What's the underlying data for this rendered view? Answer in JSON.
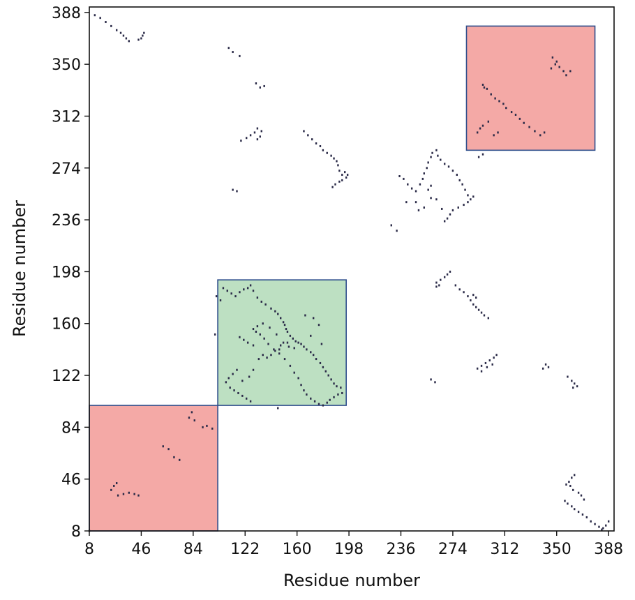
{
  "chart_data": {
    "type": "scatter",
    "title": "",
    "xlabel": "Residue number",
    "ylabel": "Residue number",
    "xlim": [
      8,
      392
    ],
    "ylim": [
      8,
      392
    ],
    "xticks": [
      "8",
      "46",
      "84",
      "122",
      "160",
      "198",
      "236",
      "274",
      "312",
      "350",
      "388"
    ],
    "yticks": [
      "8",
      "46",
      "84",
      "122",
      "160",
      "198",
      "236",
      "274",
      "312",
      "350",
      "388"
    ],
    "domains": [
      {
        "x": [
          8,
          102
        ],
        "y": [
          8,
          100
        ],
        "color": "#f4a9a6"
      },
      {
        "x": [
          102,
          196
        ],
        "y": [
          100,
          192
        ],
        "color": "#bde0c2"
      },
      {
        "x": [
          284,
          378
        ],
        "y": [
          287,
          378
        ],
        "color": "#f4a9a6"
      }
    ],
    "domain_edge_color": "#2f4e8c",
    "marker_color": "#2b2b48",
    "series": [
      {
        "points": [
          [
            12,
            386
          ],
          [
            16,
            384
          ],
          [
            20,
            381
          ],
          [
            24,
            378
          ],
          [
            28,
            375
          ],
          [
            31,
            373
          ],
          [
            33,
            371
          ],
          [
            35,
            369
          ],
          [
            37,
            367
          ],
          [
            44,
            368
          ],
          [
            47,
            371
          ],
          [
            48,
            373
          ],
          [
            46,
            369
          ],
          [
            110,
            362
          ],
          [
            113,
            359
          ],
          [
            118,
            356
          ],
          [
            130,
            336
          ],
          [
            133,
            333
          ],
          [
            136,
            334
          ],
          [
            119,
            294
          ],
          [
            123,
            296
          ],
          [
            126,
            298
          ],
          [
            129,
            300
          ],
          [
            131,
            303
          ],
          [
            134,
            301
          ],
          [
            133,
            297
          ],
          [
            131,
            295
          ],
          [
            165,
            301
          ],
          [
            168,
            298
          ],
          [
            171,
            295
          ],
          [
            174,
            292
          ],
          [
            177,
            290
          ],
          [
            179,
            287
          ],
          [
            182,
            285
          ],
          [
            185,
            283
          ],
          [
            187,
            281
          ],
          [
            189,
            279
          ],
          [
            190,
            276
          ],
          [
            191,
            272
          ],
          [
            193,
            269
          ],
          [
            195,
            271
          ],
          [
            197,
            269
          ],
          [
            196,
            267
          ],
          [
            193,
            265
          ],
          [
            191,
            264
          ],
          [
            188,
            262
          ],
          [
            186,
            260
          ],
          [
            113,
            258
          ],
          [
            116,
            257
          ],
          [
            229,
            232
          ],
          [
            233,
            228
          ],
          [
            235,
            268
          ],
          [
            238,
            266
          ],
          [
            241,
            262
          ],
          [
            244,
            259
          ],
          [
            247,
            257
          ],
          [
            250,
            262
          ],
          [
            252,
            266
          ],
          [
            253,
            270
          ],
          [
            255,
            274
          ],
          [
            256,
            278
          ],
          [
            258,
            282
          ],
          [
            259,
            285
          ],
          [
            262,
            287
          ],
          [
            263,
            283
          ],
          [
            265,
            280
          ],
          [
            268,
            277
          ],
          [
            271,
            275
          ],
          [
            274,
            272
          ],
          [
            277,
            269
          ],
          [
            279,
            265
          ],
          [
            281,
            262
          ],
          [
            283,
            258
          ],
          [
            285,
            254
          ],
          [
            287,
            251
          ],
          [
            289,
            253
          ],
          [
            285,
            249
          ],
          [
            282,
            247
          ],
          [
            278,
            245
          ],
          [
            274,
            243
          ],
          [
            272,
            240
          ],
          [
            270,
            237
          ],
          [
            268,
            235
          ],
          [
            266,
            244
          ],
          [
            262,
            251
          ],
          [
            258,
            252
          ],
          [
            256,
            258
          ],
          [
            258,
            261
          ],
          [
            253,
            245
          ],
          [
            249,
            243
          ],
          [
            247,
            249
          ],
          [
            240,
            249
          ],
          [
            262,
            190
          ],
          [
            265,
            192
          ],
          [
            268,
            194
          ],
          [
            270,
            196
          ],
          [
            272,
            198
          ],
          [
            264,
            188
          ],
          [
            262,
            187
          ],
          [
            276,
            188
          ],
          [
            279,
            185
          ],
          [
            282,
            183
          ],
          [
            285,
            180
          ],
          [
            287,
            177
          ],
          [
            289,
            174
          ],
          [
            291,
            172
          ],
          [
            293,
            170
          ],
          [
            295,
            168
          ],
          [
            297,
            166
          ],
          [
            300,
            164
          ],
          [
            291,
            179
          ],
          [
            289,
            181
          ],
          [
            292,
            127
          ],
          [
            295,
            129
          ],
          [
            298,
            131
          ],
          [
            301,
            133
          ],
          [
            304,
            135
          ],
          [
            306,
            137
          ],
          [
            303,
            130
          ],
          [
            299,
            128
          ],
          [
            295,
            125
          ],
          [
            340,
            127
          ],
          [
            342,
            130
          ],
          [
            344,
            128
          ],
          [
            258,
            119
          ],
          [
            261,
            117
          ],
          [
            358,
            121
          ],
          [
            361,
            118
          ],
          [
            363,
            116
          ],
          [
            365,
            114
          ],
          [
            362,
            113
          ],
          [
            296,
            284
          ],
          [
            293,
            282
          ],
          [
            8,
            8
          ],
          [
            100,
            152
          ],
          [
            101,
            180
          ],
          [
            104,
            177
          ],
          [
            146,
            98
          ]
        ]
      },
      {
        "points": [
          [
            24,
            38
          ],
          [
            26,
            41
          ],
          [
            28,
            43
          ],
          [
            29,
            34
          ],
          [
            33,
            35
          ],
          [
            37,
            36
          ],
          [
            41,
            35
          ],
          [
            44,
            34
          ],
          [
            62,
            70
          ],
          [
            66,
            68
          ],
          [
            70,
            62
          ],
          [
            74,
            60
          ],
          [
            81,
            91
          ],
          [
            83,
            95
          ],
          [
            85,
            89
          ],
          [
            91,
            84
          ],
          [
            94,
            85
          ],
          [
            98,
            83
          ]
        ]
      },
      {
        "points": [
          [
            106,
            186
          ],
          [
            109,
            184
          ],
          [
            112,
            182
          ],
          [
            115,
            180
          ],
          [
            118,
            183
          ],
          [
            121,
            185
          ],
          [
            124,
            186
          ],
          [
            126,
            188
          ],
          [
            128,
            184
          ],
          [
            131,
            179
          ],
          [
            134,
            176
          ],
          [
            137,
            174
          ],
          [
            141,
            171
          ],
          [
            144,
            169
          ],
          [
            146,
            167
          ],
          [
            148,
            164
          ],
          [
            150,
            161
          ],
          [
            151,
            159
          ],
          [
            152,
            156
          ],
          [
            153,
            154
          ],
          [
            155,
            151
          ],
          [
            157,
            149
          ],
          [
            159,
            147
          ],
          [
            161,
            146
          ],
          [
            163,
            145
          ],
          [
            165,
            143
          ],
          [
            167,
            141
          ],
          [
            170,
            139
          ],
          [
            172,
            137
          ],
          [
            174,
            134
          ],
          [
            177,
            131
          ],
          [
            179,
            128
          ],
          [
            181,
            125
          ],
          [
            183,
            122
          ],
          [
            185,
            119
          ],
          [
            187,
            116
          ],
          [
            189,
            114
          ],
          [
            192,
            113
          ],
          [
            193,
            109
          ],
          [
            190,
            108
          ],
          [
            187,
            106
          ],
          [
            184,
            104
          ],
          [
            182,
            102
          ],
          [
            179,
            100
          ],
          [
            176,
            101
          ],
          [
            173,
            103
          ],
          [
            170,
            105
          ],
          [
            167,
            108
          ],
          [
            165,
            111
          ],
          [
            163,
            115
          ],
          [
            161,
            120
          ],
          [
            158,
            124
          ],
          [
            155,
            129
          ],
          [
            151,
            134
          ],
          [
            147,
            138
          ],
          [
            143,
            141
          ],
          [
            139,
            145
          ],
          [
            136,
            149
          ],
          [
            133,
            152
          ],
          [
            130,
            154
          ],
          [
            128,
            156
          ],
          [
            131,
            158
          ],
          [
            135,
            160
          ],
          [
            140,
            157
          ],
          [
            145,
            152
          ],
          [
            150,
            146
          ],
          [
            154,
            143
          ],
          [
            158,
            142
          ],
          [
            153,
            146
          ],
          [
            148,
            144
          ],
          [
            147,
            141
          ],
          [
            144,
            140
          ],
          [
            141,
            137
          ],
          [
            138,
            135
          ],
          [
            135,
            137
          ],
          [
            132,
            134
          ],
          [
            128,
            144
          ],
          [
            124,
            146
          ],
          [
            121,
            148
          ],
          [
            118,
            150
          ],
          [
            116,
            126
          ],
          [
            113,
            123
          ],
          [
            110,
            120
          ],
          [
            108,
            117
          ],
          [
            111,
            113
          ],
          [
            114,
            111
          ],
          [
            117,
            109
          ],
          [
            120,
            107
          ],
          [
            123,
            105
          ],
          [
            126,
            103
          ],
          [
            125,
            121
          ],
          [
            128,
            126
          ],
          [
            120,
            118
          ],
          [
            166,
            166
          ],
          [
            172,
            164
          ],
          [
            176,
            159
          ],
          [
            170,
            151
          ],
          [
            178,
            145
          ]
        ]
      },
      {
        "points": [
          [
            296,
            335
          ],
          [
            299,
            332
          ],
          [
            302,
            328
          ],
          [
            305,
            325
          ],
          [
            308,
            323
          ],
          [
            311,
            321
          ],
          [
            313,
            318
          ],
          [
            317,
            315
          ],
          [
            320,
            313
          ],
          [
            323,
            310
          ],
          [
            326,
            307
          ],
          [
            330,
            304
          ],
          [
            334,
            301
          ],
          [
            338,
            298
          ],
          [
            341,
            300
          ],
          [
            346,
            347
          ],
          [
            349,
            350
          ],
          [
            352,
            348
          ],
          [
            355,
            345
          ],
          [
            357,
            342
          ],
          [
            360,
            345
          ],
          [
            347,
            355
          ],
          [
            350,
            352
          ],
          [
            296,
            305
          ],
          [
            300,
            308
          ],
          [
            304,
            298
          ],
          [
            307,
            300
          ],
          [
            292,
            300
          ],
          [
            294,
            303
          ],
          [
            297,
            333
          ]
        ]
      },
      {
        "points": [
          [
            356,
            30
          ],
          [
            358,
            28
          ],
          [
            361,
            26
          ],
          [
            363,
            24
          ],
          [
            366,
            22
          ],
          [
            369,
            20
          ],
          [
            372,
            18
          ],
          [
            375,
            15
          ],
          [
            378,
            13
          ],
          [
            381,
            11
          ],
          [
            383,
            9
          ],
          [
            386,
            12
          ],
          [
            388,
            15
          ],
          [
            384,
            10
          ],
          [
            357,
            42
          ],
          [
            359,
            44
          ],
          [
            361,
            47
          ],
          [
            363,
            49
          ],
          [
            360,
            41
          ],
          [
            362,
            38
          ],
          [
            366,
            36
          ],
          [
            368,
            34
          ],
          [
            370,
            31
          ]
        ]
      }
    ]
  }
}
